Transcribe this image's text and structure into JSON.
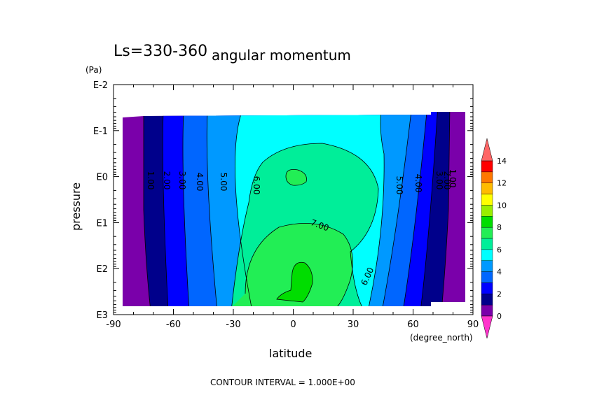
{
  "chart_data": {
    "type": "contour",
    "title_left": "Ls=330-360",
    "title": "angular momentum",
    "xlabel": "latitude",
    "xunit": "(degree_north)",
    "ylabel": "pressure",
    "yunit": "(Pa)",
    "x_range": [
      -90,
      90
    ],
    "y_range_log10": [
      -2,
      3
    ],
    "y_inverted": true,
    "x_ticks": [
      "-90",
      "-60",
      "-30",
      "0",
      "30",
      "60",
      "90"
    ],
    "y_ticks": [
      "E-2",
      "E-1",
      "E0",
      "E1",
      "E2",
      "E3"
    ],
    "contour_labels": [
      "1.00",
      "2.00",
      "3.00",
      "4.00",
      "5.00",
      "6.00",
      "7.00",
      "6.00",
      "5.00",
      "4.00",
      "3.00",
      "2.00",
      "1.00"
    ],
    "footer": "CONTOUR INTERVAL = 1.000E+00",
    "colorbar": {
      "labels": [
        "0",
        "2",
        "4",
        "6",
        "8",
        "10",
        "12",
        "14"
      ],
      "colors": [
        "#ff33cc",
        "#7a00aa",
        "#00008b",
        "#0000ff",
        "#0066ff",
        "#0099ff",
        "#00ffff",
        "#00ee99",
        "#22ee55",
        "#00dd00",
        "#99ee00",
        "#ffff00",
        "#ffbb00",
        "#ff7700",
        "#ff0000",
        "#ff6666"
      ]
    }
  }
}
